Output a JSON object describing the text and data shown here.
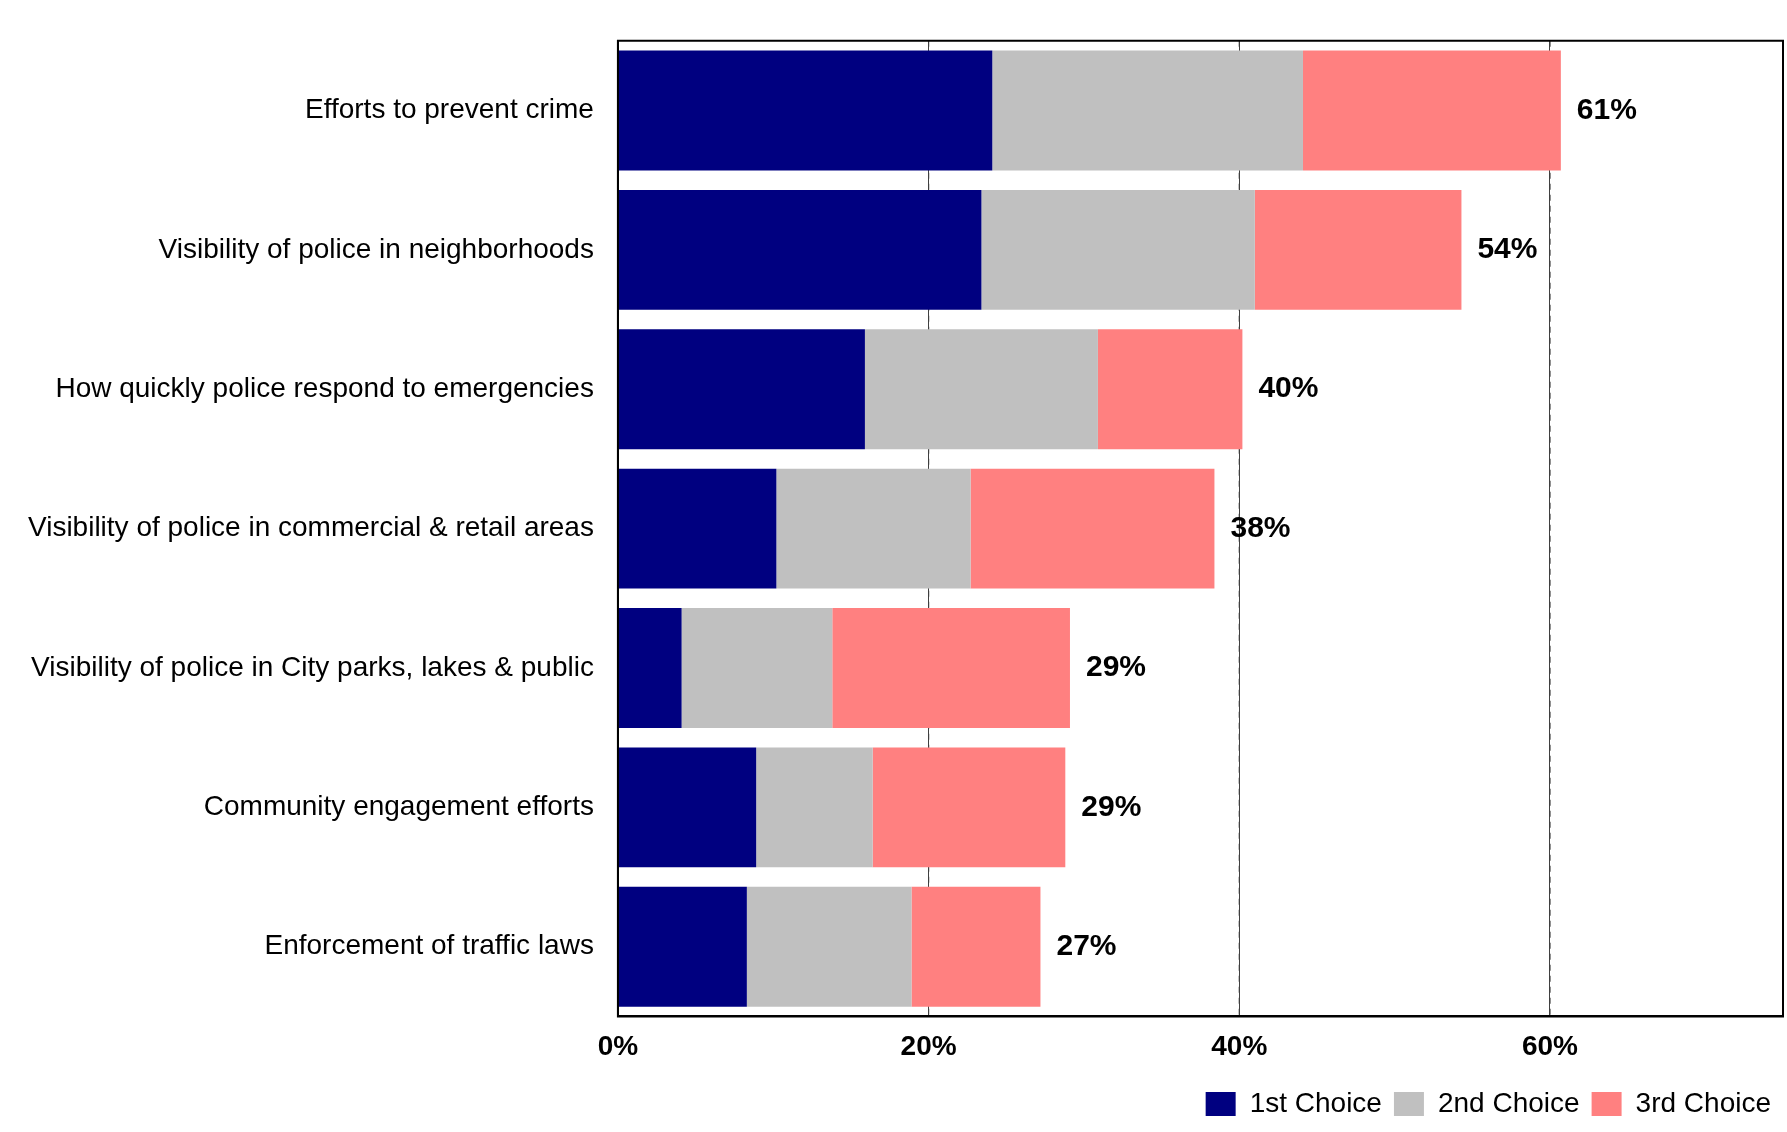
{
  "chart_data": {
    "type": "bar",
    "orientation": "horizontal",
    "stacked": true,
    "categories": [
      "Efforts to prevent crime",
      "Visibility of police in neighborhoods",
      "How quickly police respond to emergencies",
      "Visibility of police in commercial & retail areas",
      "Visibility of police in City parks, lakes & public",
      "Community engagement efforts",
      "Enforcement of traffic laws"
    ],
    "series": [
      {
        "name": "1st Choice",
        "color": "#000080",
        "values": [
          24.1,
          23.4,
          15.9,
          10.2,
          4.1,
          8.9,
          8.3
        ]
      },
      {
        "name": "2nd Choice",
        "color": "#c0c0c0",
        "values": [
          20.0,
          17.6,
          15.0,
          12.5,
          9.7,
          7.5,
          10.6
        ]
      },
      {
        "name": "3rd Choice",
        "color": "#ff8080",
        "values": [
          16.6,
          13.3,
          9.3,
          15.7,
          15.3,
          12.4,
          8.3
        ]
      }
    ],
    "totals": [
      "61%",
      "54%",
      "40%",
      "38%",
      "29%",
      "29%",
      "27%"
    ],
    "xlim": [
      0,
      75
    ],
    "xticks": [
      {
        "value": 0,
        "label": "0%"
      },
      {
        "value": 20,
        "label": "20%"
      },
      {
        "value": 40,
        "label": "40%"
      },
      {
        "value": 60,
        "label": "60%"
      }
    ],
    "grid": "x",
    "legend": "bottom right"
  }
}
